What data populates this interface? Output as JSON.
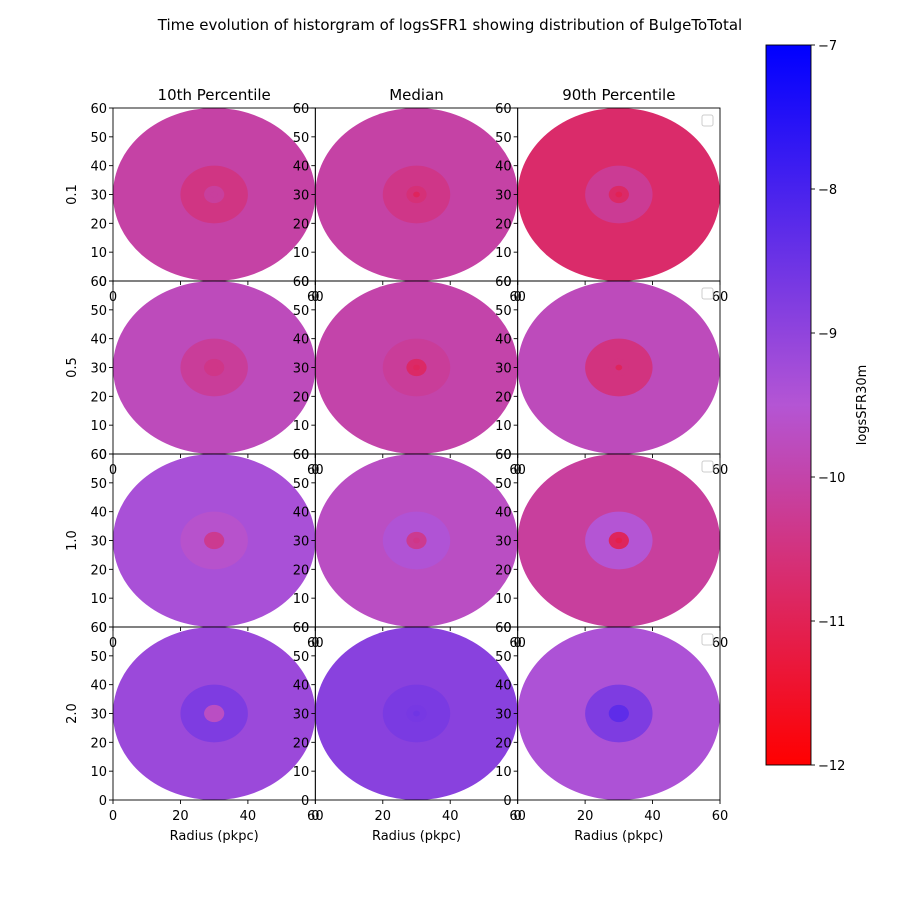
{
  "chart_data": {
    "type": "heatmap",
    "title": "Time evolution of historgram of logsSFR1 showing distribution of BulgeToTotal",
    "col_titles": [
      "10th Percentile",
      "Median",
      "90th Percentile"
    ],
    "row_labels": [
      "0.1",
      "0.5",
      "1.0",
      "2.0"
    ],
    "xlabel": "Radius (pkpc)",
    "xlim": [
      0,
      60
    ],
    "ylim": [
      0,
      60
    ],
    "xticks": [
      "0",
      "20",
      "40",
      "60"
    ],
    "yticks": [
      "0",
      "10",
      "20",
      "30",
      "40",
      "50",
      "60"
    ],
    "legend_placement": "upper right",
    "colorbar": {
      "label": "logsSFR30m",
      "range": [
        -12,
        -7
      ],
      "ticks": [
        "−12",
        "−11",
        "−10",
        "−9",
        "−8",
        "−7"
      ],
      "color_stops": [
        {
          "value": -12,
          "color": "#ff0000"
        },
        {
          "value": -9.5,
          "color": "#b455d4"
        },
        {
          "value": -7,
          "color": "#0000ff"
        }
      ]
    },
    "ring_radii": [
      30,
      10,
      3,
      1
    ],
    "center": [
      30,
      30
    ],
    "panels": [
      [
        {
          "rings": [
            -10.05,
            -10.45,
            -10.15,
            -10.15
          ]
        },
        {
          "rings": [
            -10.05,
            -10.4,
            -10.6,
            -10.9
          ]
        },
        {
          "rings": [
            -10.75,
            -10.25,
            -10.8,
            -11.0
          ]
        }
      ],
      [
        {
          "rings": [
            -9.8,
            -10.2,
            -10.4,
            -10.4
          ]
        },
        {
          "rings": [
            -10.0,
            -10.2,
            -10.8,
            -10.9
          ]
        },
        {
          "rings": [
            -9.8,
            -10.5,
            -10.5,
            -10.9
          ]
        }
      ],
      [
        {
          "rings": [
            -9.35,
            -9.6,
            -10.3,
            -10.3
          ]
        },
        {
          "rings": [
            -9.7,
            -9.45,
            -10.3,
            -10.4
          ]
        },
        {
          "rings": [
            -10.15,
            -9.5,
            -10.9,
            -11.1
          ]
        }
      ],
      [
        {
          "rings": [
            -9.15,
            -8.75,
            -9.7,
            -9.7
          ]
        },
        {
          "rings": [
            -8.9,
            -8.7,
            -8.65,
            -8.55
          ]
        },
        {
          "rings": [
            -9.4,
            -8.75,
            -8.3,
            -8.3
          ]
        }
      ]
    ]
  }
}
